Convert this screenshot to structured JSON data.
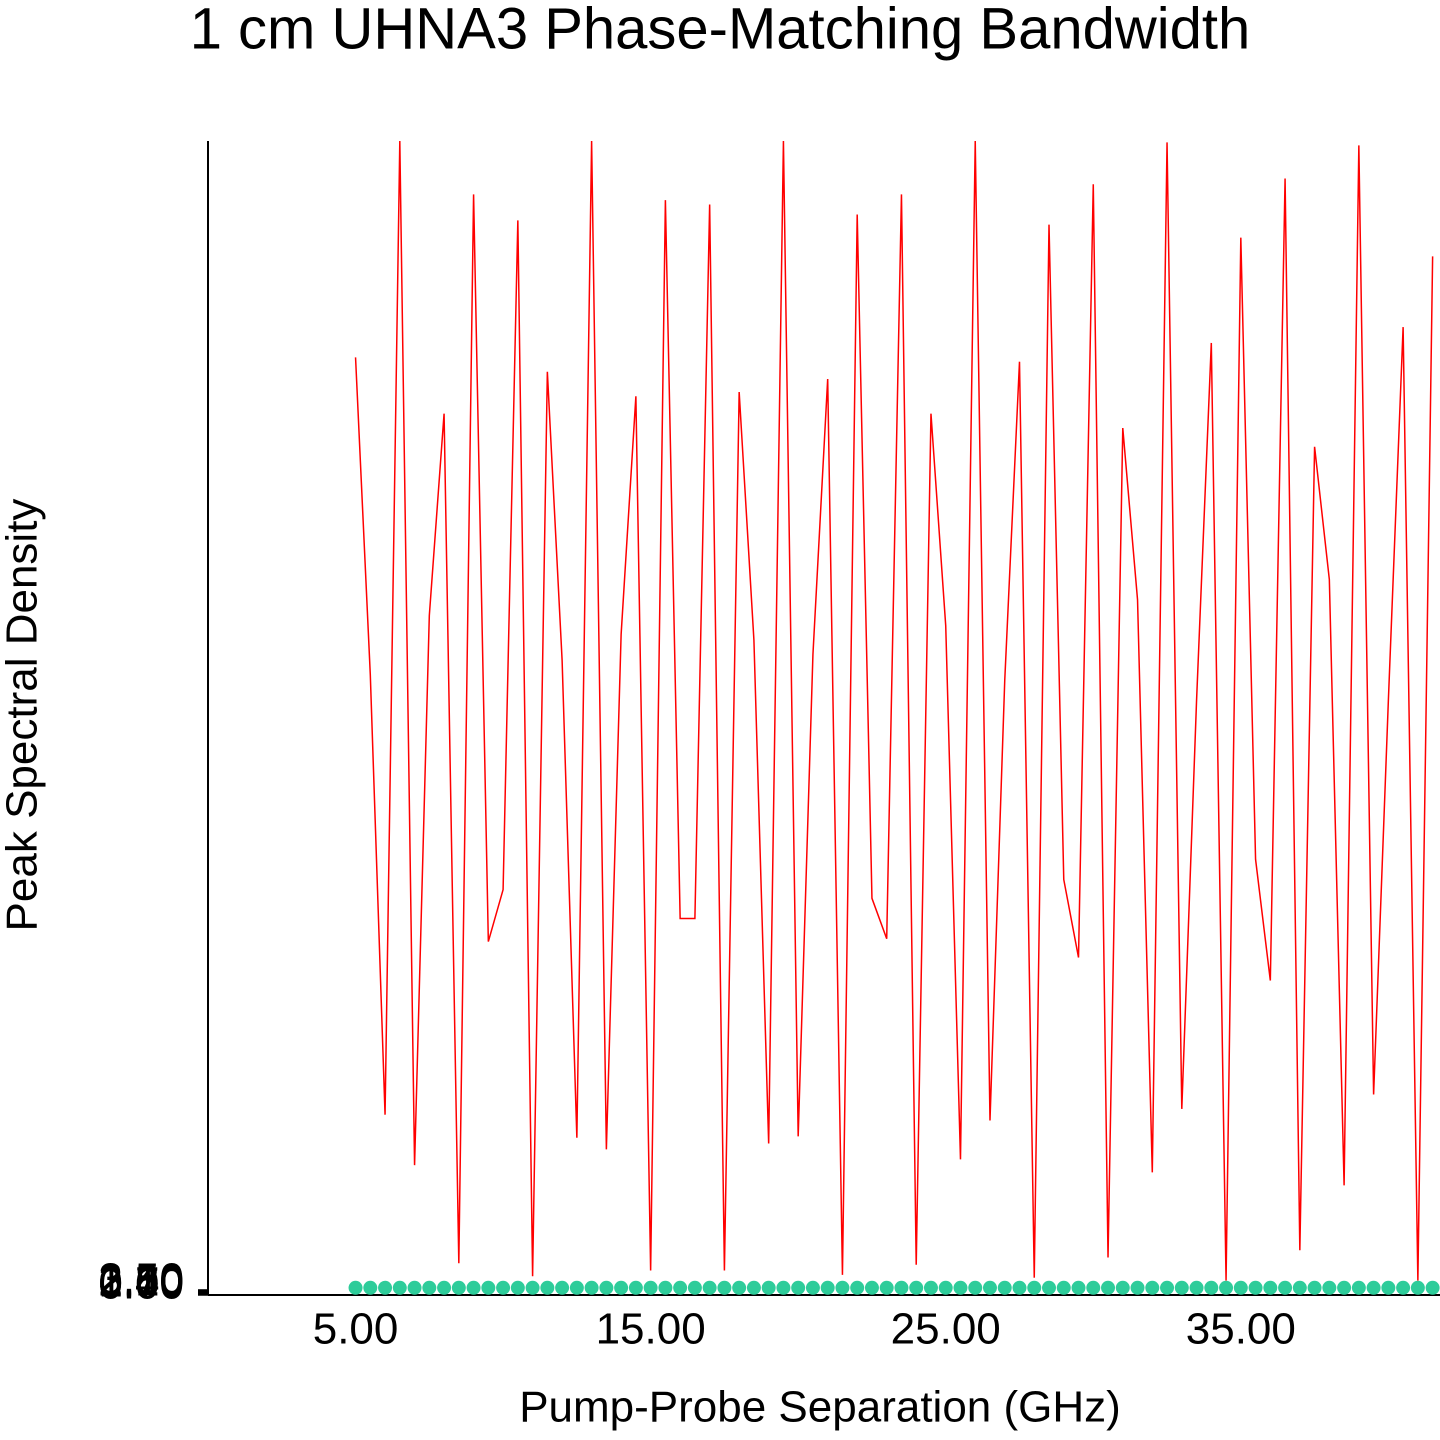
{
  "chart_data": {
    "type": "line",
    "title": "1 cm UHNA3 Phase-Matching Bandwidth",
    "x_label": "Pump-Probe Separation (GHz)",
    "y_label": "Peak Spectral Density",
    "x": [
      5,
      5.5,
      6,
      6.5,
      7,
      7.5,
      8,
      8.5,
      9,
      9.5,
      10,
      10.5,
      11,
      11.5,
      12,
      12.5,
      13,
      13.5,
      14,
      14.5,
      15,
      15.5,
      16,
      16.5,
      17,
      17.5,
      18,
      18.5,
      19,
      19.5,
      20,
      20.5,
      21,
      21.5,
      22,
      22.5,
      23,
      23.5,
      24,
      24.5,
      25,
      25.5,
      26,
      26.5,
      27,
      27.5,
      28,
      28.5,
      29,
      29.5,
      30,
      30.5,
      31,
      31.5,
      32,
      32.5,
      33,
      33.5,
      34,
      34.5,
      35,
      35.5,
      36,
      36.5,
      37,
      37.5,
      38,
      38.5,
      39,
      39.5,
      40,
      40.5,
      41,
      41.5
    ],
    "series": [
      {
        "color": "#ff0000",
        "style": "line",
        "values": [
          650,
          430,
          125,
          800,
          90,
          471,
          611,
          22,
          763,
          245,
          281,
          745,
          13,
          640,
          440,
          109,
          800,
          101,
          458,
          623,
          17,
          759,
          261,
          261,
          756,
          17,
          626,
          454,
          105,
          800,
          110,
          444,
          635,
          14,
          749,
          275,
          247,
          763,
          21,
          611,
          464,
          94,
          800,
          121,
          426,
          647,
          12,
          742,
          288,
          234,
          770,
          26,
          601,
          482,
          85,
          799,
          129,
          412,
          660,
          10,
          733,
          302,
          218,
          774,
          31,
          588,
          496,
          76,
          797,
          139,
          412,
          671,
          10,
          720
        ]
      },
      {
        "color": "#2ecc9a",
        "style": "markers",
        "values": [
          5,
          5,
          5,
          5,
          5,
          5,
          5,
          5,
          5,
          5,
          5,
          5,
          5,
          5,
          5,
          5,
          5,
          5,
          5,
          5,
          5,
          5,
          5,
          5,
          5,
          5,
          5,
          5,
          5,
          5,
          5,
          5,
          5,
          5,
          5,
          5,
          5,
          5,
          5,
          5,
          5,
          5,
          5,
          5,
          5,
          5,
          5,
          5,
          5,
          5,
          5,
          5,
          5,
          5,
          5,
          5,
          5,
          5,
          5,
          5,
          5,
          5,
          5,
          5,
          5,
          5,
          5,
          5,
          5,
          5,
          5,
          5,
          5,
          5
        ]
      }
    ],
    "xlim": [
      0,
      41.75
    ],
    "xticks": [
      {
        "value": 5,
        "label": "5.00"
      },
      {
        "value": 15,
        "label": "15.00"
      },
      {
        "value": 25,
        "label": "25.00"
      },
      {
        "value": 35,
        "label": "35.00"
      }
    ],
    "ylim": [
      0,
      800
    ],
    "yticks": [
      {
        "value": 0,
        "label": "0.00"
      },
      {
        "value": 0.7,
        "label": "0.70"
      },
      {
        "value": 1.4,
        "label": "1.40"
      },
      {
        "value": 2.1,
        "label": "2.10"
      },
      {
        "value": 2.8,
        "label": "2.80"
      },
      {
        "value": 3.5,
        "label": "3.50"
      }
    ]
  }
}
